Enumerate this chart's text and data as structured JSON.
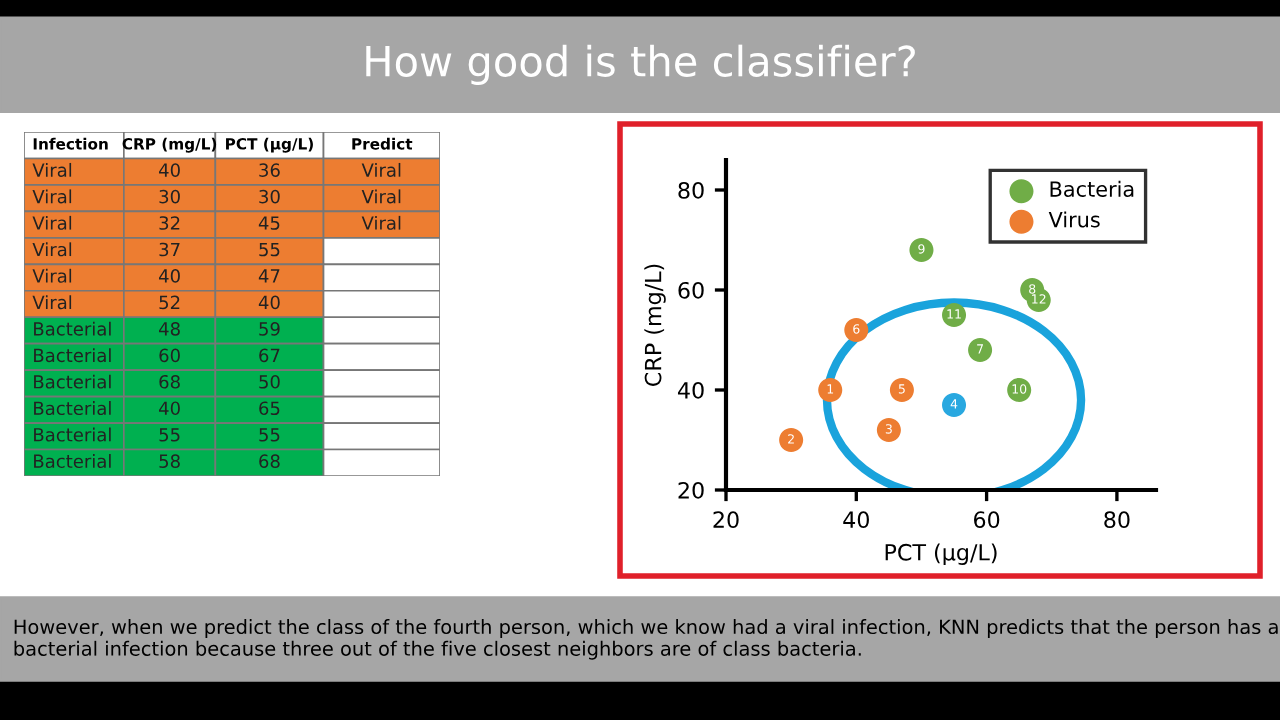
{
  "chart_data": [
    {
      "type": "other",
      "categories": [
        "Infection",
        "CRP (mg/L)",
        "PCT (µg/L)",
        "Predict"
      ],
      "annotations": [
        "Viral",
        "40",
        "36",
        "Viral",
        "Viral",
        "30",
        "30",
        "Viral",
        "Viral",
        "32",
        "45",
        "Viral",
        "Viral",
        "37",
        "55",
        null,
        "Viral",
        "40",
        "47",
        null,
        "Viral",
        "52",
        "40",
        null,
        "Bacterial",
        "48",
        "59",
        null,
        "Bacterial",
        "60",
        "67",
        null,
        "Bacterial",
        "68",
        "50",
        null,
        "Bacterial",
        "40",
        "65",
        null,
        "Bacterial",
        "55",
        "55",
        null,
        "Bacterial",
        "58",
        "68",
        null
      ],
      "colors": [
        "#ffffff",
        "#ffffff",
        "#ffffff",
        "#ffffff",
        "#ed7d31",
        "#ed7d31",
        "#ed7d31",
        "#ed7d31",
        "#ed7d31",
        "#ed7d31",
        "#ed7d31",
        "#ed7d31",
        "#ed7d31",
        "#ed7d31",
        "#ed7d31",
        "#ed7d31",
        "#ed7d31",
        "#ed7d31",
        "#ed7d31",
        "#ffffff",
        "#ed7d31",
        "#ed7d31",
        "#ed7d31",
        "#ffffff",
        "#ed7d31",
        "#ed7d31",
        "#ed7d31",
        "#ffffff",
        "#00b050",
        "#00b050",
        "#00b050",
        "#ffffff",
        "#00b050",
        "#00b050",
        "#00b050",
        "#ffffff",
        "#00b050",
        "#00b050",
        "#00b050",
        "#ffffff",
        "#00b050",
        "#00b050",
        "#00b050",
        "#ffffff",
        "#00b050",
        "#00b050",
        "#00b050",
        "#ffffff",
        "#00b050",
        "#00b050",
        "#00b050",
        "#ffffff"
      ]
    },
    {
      "type": "scatter",
      "title": "How good is the classifier?",
      "xlabel": "PCT (µg/L)",
      "ylabel": "CRP (mg/L)",
      "xlim": [
        20,
        86
      ],
      "ylim": [
        20,
        86
      ],
      "xticks": [
        20,
        40,
        60,
        80
      ],
      "yticks": [
        20,
        40,
        60,
        80
      ],
      "grid": false,
      "legend": "top right",
      "marker": "circle",
      "series": [
        {
          "name": "Bacteria",
          "color": "#70ad47",
          "x": [
            59,
            67,
            50,
            65,
            55,
            68
          ],
          "values": [
            48,
            60,
            68,
            40,
            55,
            58
          ]
        },
        {
          "name": "Virus",
          "color": "#ed7d31",
          "x": [
            36,
            30,
            45,
            47,
            40
          ],
          "values": [
            40,
            30,
            32,
            40,
            52
          ]
        },
        {
          "color": "#29a8e0",
          "x": [
            55
          ],
          "values": [
            37
          ]
        }
      ],
      "annotations": [
        {
          "text": "1",
          "x": 36,
          "y": 40
        },
        {
          "text": "2",
          "x": 30,
          "y": 30
        },
        {
          "text": "3",
          "x": 45,
          "y": 32
        },
        {
          "text": "4",
          "x": 55,
          "y": 37
        },
        {
          "text": "5",
          "x": 47,
          "y": 40
        },
        {
          "text": "6",
          "x": 40,
          "y": 52
        },
        {
          "text": "7",
          "x": 59,
          "y": 48
        },
        {
          "text": "8",
          "x": 67,
          "y": 60
        },
        {
          "text": "9",
          "x": 50,
          "y": 68
        },
        {
          "text": "10",
          "x": 65,
          "y": 40
        },
        {
          "text": "11",
          "x": 55,
          "y": 55
        },
        {
          "text": "12",
          "x": 68,
          "y": 58
        },
        "However, when we predict the class of the fourth person, which we know had a viral infection, KNN predicts that the person has a bacterial infection because three out of the five closest neighbors are of class bacteria."
      ]
    }
  ]
}
